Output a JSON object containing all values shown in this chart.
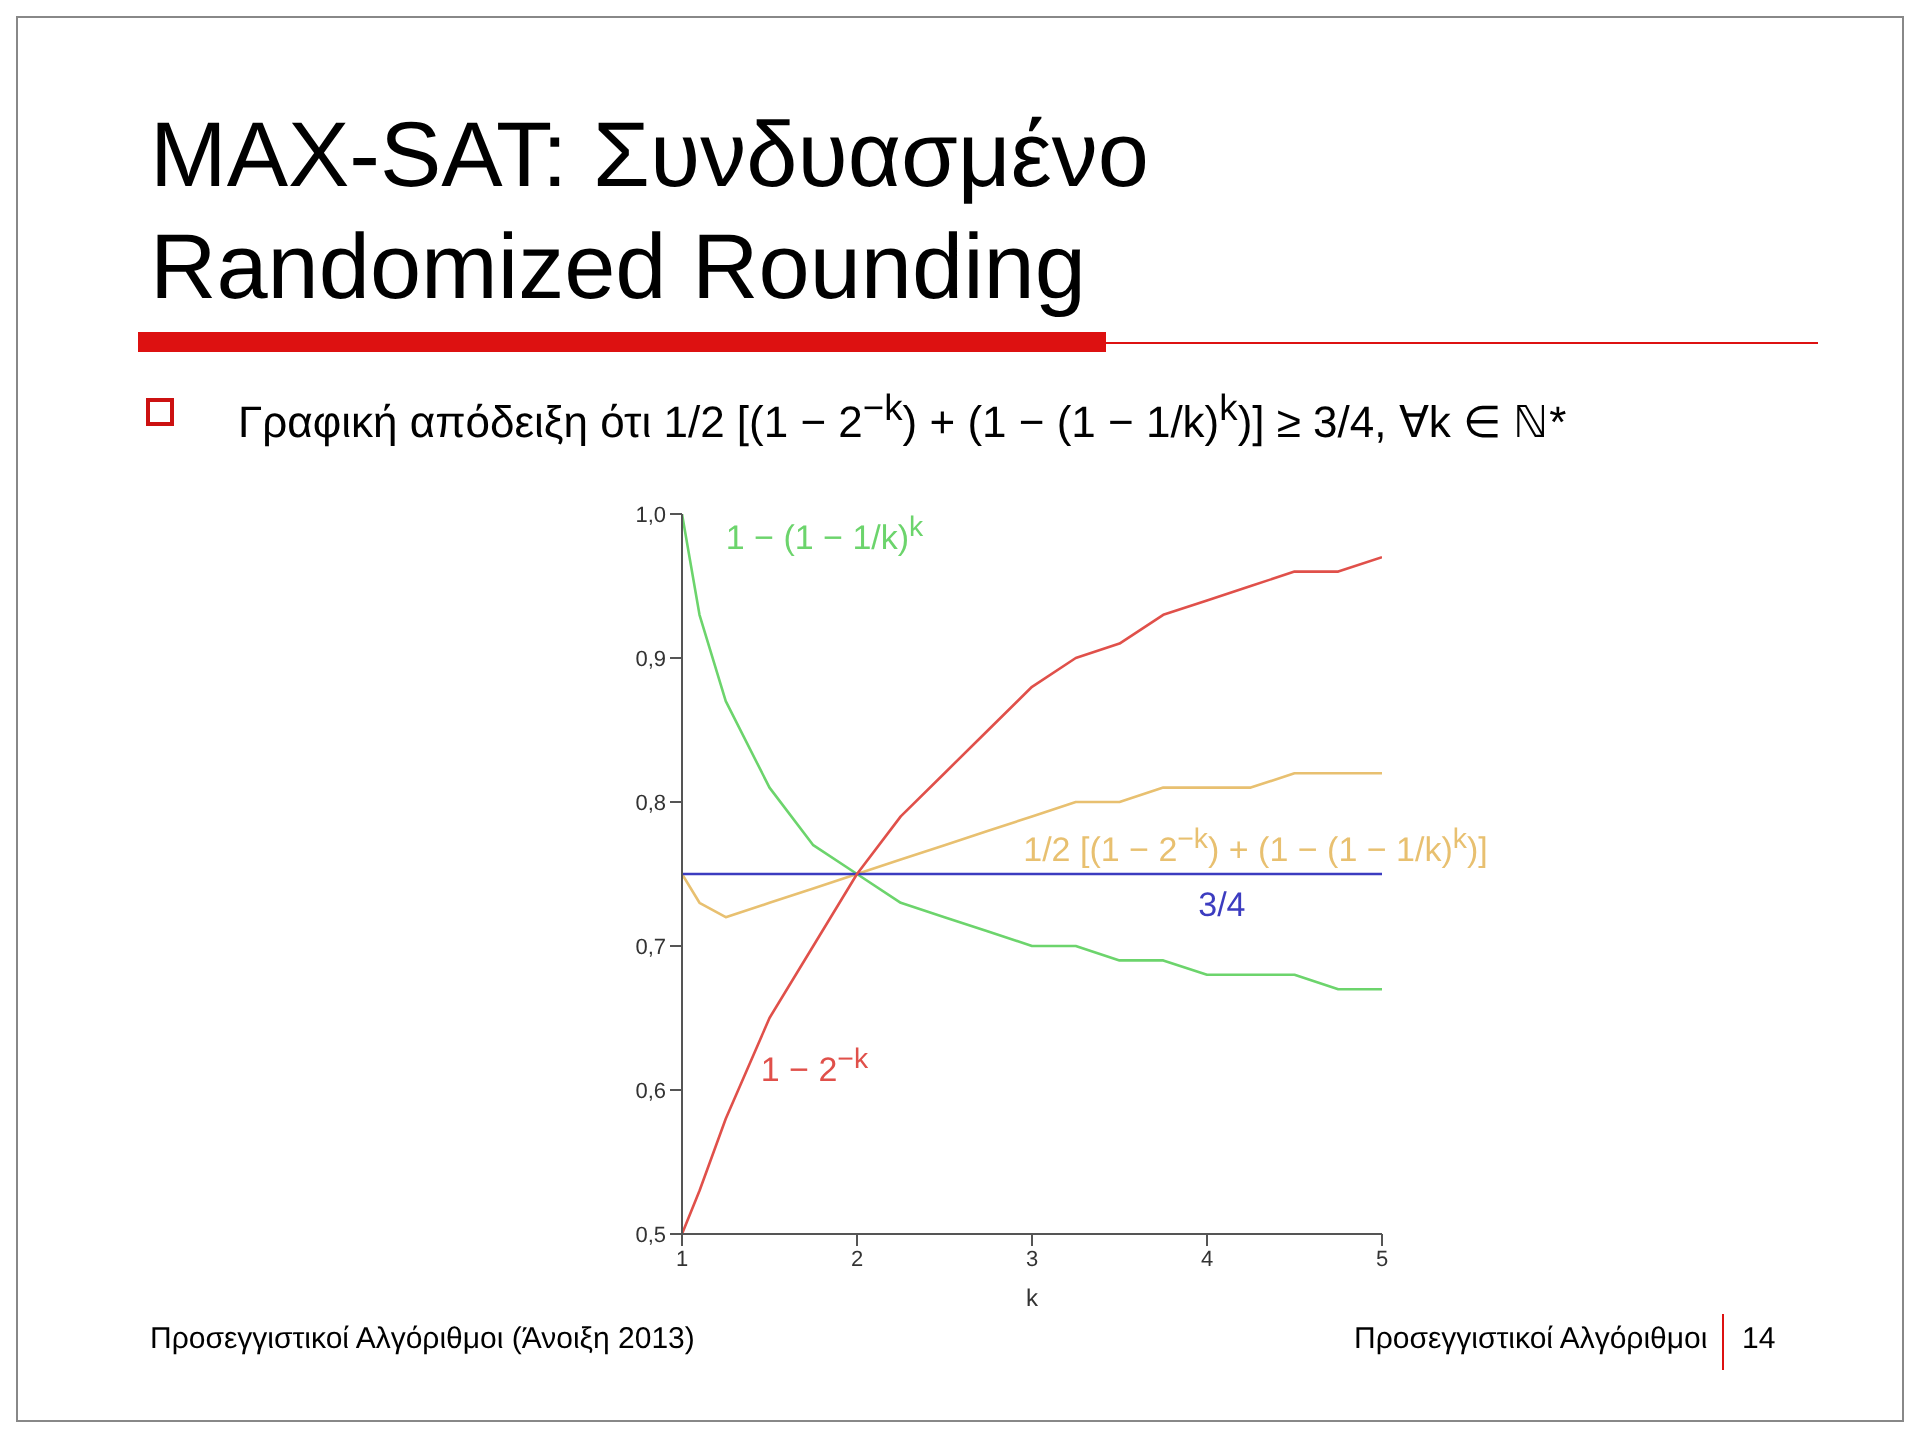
{
  "chart_data": {
    "type": "line",
    "title": "MAX-SAT: Συνδυασμένο Randomized Rounding",
    "subtitle": "Γραφική απόδειξη ότι 1/2 [(1 − 2$^{−k}$) + (1 − (1 − 1/k)$^{k}$)] ≥ 3/4, ∀k ∈ ℕ*",
    "xlabel": "k",
    "x": [
      1,
      1.1,
      1.25,
      1.5,
      1.75,
      2,
      2.25,
      2.5,
      2.75,
      3,
      3.25,
      3.5,
      3.75,
      4,
      4.25,
      4.5,
      4.75,
      5
    ],
    "series": [
      {
        "name": "1 − (1 − 1/k)$^{k}$",
        "color": "#6cd46c",
        "values": [
          1.0,
          0.93,
          0.87,
          0.81,
          0.77,
          0.75,
          0.73,
          0.72,
          0.71,
          0.7,
          0.7,
          0.69,
          0.69,
          0.68,
          0.68,
          0.68,
          0.67,
          0.67
        ]
      },
      {
        "name": "1/2 [(1 − 2$^{−k}$) + (1 − (1 − 1/k)$^{k}$)]",
        "color": "#e8c070",
        "values": [
          0.75,
          0.73,
          0.72,
          0.73,
          0.74,
          0.75,
          0.76,
          0.77,
          0.78,
          0.79,
          0.8,
          0.8,
          0.81,
          0.81,
          0.81,
          0.82,
          0.82,
          0.82
        ]
      },
      {
        "name": "3/4",
        "color": "#3c3cc0",
        "values": [
          0.75,
          0.75,
          0.75,
          0.75,
          0.75,
          0.75,
          0.75,
          0.75,
          0.75,
          0.75,
          0.75,
          0.75,
          0.75,
          0.75,
          0.75,
          0.75,
          0.75,
          0.75
        ]
      },
      {
        "name": "1 − 2$^{−k}$",
        "color": "#e0504a",
        "values": [
          0.5,
          0.53,
          0.58,
          0.65,
          0.7,
          0.75,
          0.79,
          0.82,
          0.85,
          0.88,
          0.9,
          0.91,
          0.93,
          0.94,
          0.95,
          0.96,
          0.96,
          0.97
        ]
      }
    ],
    "xlim": [
      1,
      5
    ],
    "xticks": [
      1,
      2,
      3,
      4,
      5
    ],
    "ylim": [
      0.5,
      1.0
    ],
    "yticks": [
      {
        "value": 0.5,
        "label": "0,5"
      },
      {
        "value": 0.6,
        "label": "0,6"
      },
      {
        "value": 0.7,
        "label": "0,7"
      },
      {
        "value": 0.8,
        "label": "0,8"
      },
      {
        "value": 0.9,
        "label": "0,9"
      },
      {
        "value": 1.0,
        "label": "1,0"
      }
    ],
    "grid": false,
    "annotations": [
      "Προσεγγιστικοί Αλγόριθμοι (Άνοιξη 2013)",
      "Προσεγγιστικοί Αλγόριθμοι",
      "14"
    ]
  }
}
